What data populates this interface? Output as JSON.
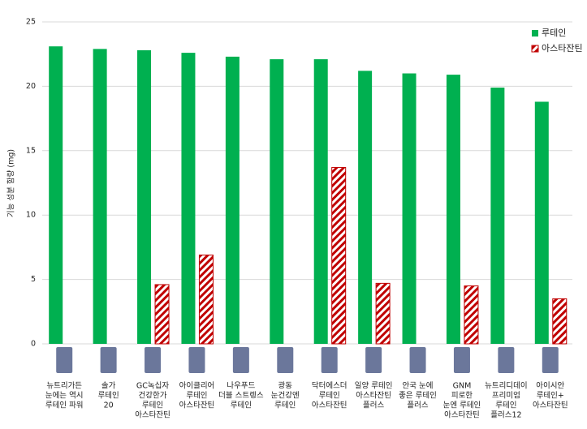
{
  "chart_data": {
    "type": "bar",
    "y_label": "기능 성분 함량 (mg)",
    "categories": [
      [
        "뉴트리가든",
        "눈에는 역시",
        "루테인 파워"
      ],
      [
        "솔가",
        "루테인",
        "20"
      ],
      [
        "GC녹십자",
        "건강한가",
        "루테인",
        "아스타잔틴"
      ],
      [
        "아이클리어",
        "루테인",
        "아스타잔틴"
      ],
      [
        "나우푸드",
        "더블 스트렝스",
        "루테인"
      ],
      [
        "광동",
        "눈건강엔",
        "루테인"
      ],
      [
        "닥터에스더",
        "루테인",
        "아스타잔틴"
      ],
      [
        "일양 루테인",
        "아스타잔틴",
        "플러스"
      ],
      [
        "안국 눈에",
        "좋은 루테인",
        "플러스"
      ],
      [
        "GNM",
        "피로한",
        "눈엔 루테인",
        "아스타잔틴"
      ],
      [
        "뉴트리디데이",
        "프리미엄",
        "루테인",
        "플러스12"
      ],
      [
        "아이시안",
        "루테인+",
        "아스타잔틴"
      ]
    ],
    "series": [
      {
        "name": "루테인",
        "color": "#00b050",
        "values": [
          23.1,
          22.9,
          22.8,
          22.6,
          22.3,
          22.1,
          22.1,
          21.2,
          21.0,
          20.9,
          19.9,
          18.8
        ]
      },
      {
        "name": "아스타잔틴",
        "color": "#c00000",
        "hatch": true,
        "values": [
          null,
          null,
          4.6,
          6.9,
          null,
          null,
          13.7,
          4.7,
          null,
          4.5,
          null,
          3.5
        ]
      }
    ],
    "ylim": [
      0,
      25
    ],
    "yticks": [
      0,
      5,
      10,
      15,
      20,
      25
    ],
    "grid": true,
    "legend": "top-right"
  }
}
